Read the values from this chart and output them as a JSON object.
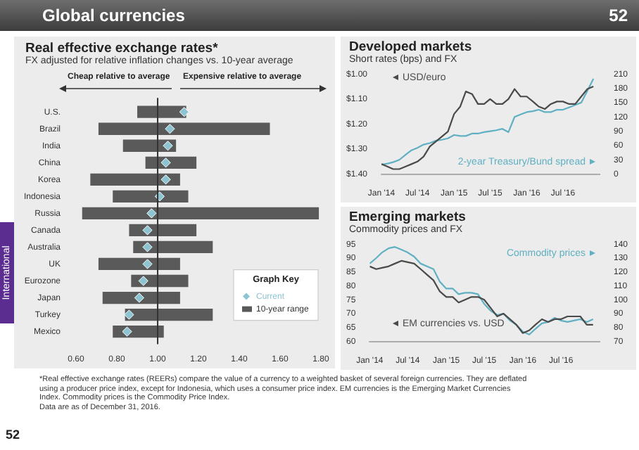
{
  "chart_data": [
    {
      "type": "other",
      "title": "Global currencies",
      "annotations": [
        "52",
        "International",
        "*Real effective exchange rates (REERs) compare the value of a currency to a weighted basket of several foreign currencies. They are deflated using a producer price index, except for Indonesia, which uses a consumer price index. EM currencies is the Emerging Market Currencies Index. Commodity prices is the Commodity Price Index.",
        "Data are as of December 31, 2016.",
        "52"
      ]
    },
    {
      "type": "bar",
      "orientation": "horizontal",
      "title": "Real effective exchange rates*",
      "subtitle": "FX adjusted for relative inflation changes vs. 10-year average",
      "annotations": [
        "Cheap relative to average",
        "Expensive relative to average"
      ],
      "categories": [
        "U.S.",
        "Brazil",
        "India",
        "China",
        "Korea",
        "Indonesia",
        "Russia",
        "Canada",
        "Australia",
        "UK",
        "Eurozone",
        "Japan",
        "Turkey",
        "Mexico"
      ],
      "series": [
        {
          "name": "10-year range",
          "type": "bar",
          "color": "#5a5a5a",
          "base": [
            0.9,
            0.71,
            0.83,
            0.94,
            0.67,
            0.78,
            0.63,
            0.86,
            0.88,
            0.71,
            0.87,
            0.73,
            0.84,
            0.78
          ],
          "values": [
            0.24,
            0.84,
            0.26,
            0.25,
            0.44,
            0.37,
            1.16,
            0.33,
            0.39,
            0.4,
            0.28,
            0.38,
            0.43,
            0.25
          ]
        },
        {
          "name": "Current",
          "type": "scatter",
          "color": "#8cc4d2",
          "values": [
            1.13,
            1.06,
            1.05,
            1.04,
            1.04,
            1.01,
            0.97,
            0.95,
            0.95,
            0.95,
            0.93,
            0.91,
            0.86,
            0.85
          ]
        }
      ],
      "marker": "diamond",
      "legend": "bottom right",
      "legend_title": "Graph Key",
      "xlim": [
        0.6,
        1.8
      ],
      "xticks": [
        {
          "value": 0.6,
          "label": "0.60"
        },
        {
          "value": 0.8,
          "label": "0.80"
        },
        {
          "value": 1.0,
          "label": "1.00"
        },
        {
          "value": 1.2,
          "label": "1.20"
        },
        {
          "value": 1.4,
          "label": "1.40"
        },
        {
          "value": 1.6,
          "label": "1.60"
        },
        {
          "value": 1.8,
          "label": "1.80"
        }
      ],
      "ref_lines": [
        {
          "axis": "x",
          "value": 1.0
        }
      ]
    },
    {
      "type": "line",
      "title": "Developed markets",
      "subtitle": "Short rates (bps) and FX",
      "x": [
        "2014-01",
        "2014-02",
        "2014-03",
        "2014-04",
        "2014-05",
        "2014-06",
        "2014-07",
        "2014-08",
        "2014-09",
        "2014-10",
        "2014-11",
        "2014-12",
        "2015-01",
        "2015-02",
        "2015-03",
        "2015-04",
        "2015-05",
        "2015-06",
        "2015-07",
        "2015-08",
        "2015-09",
        "2015-10",
        "2015-11",
        "2015-12",
        "2016-01",
        "2016-02",
        "2016-03",
        "2016-04",
        "2016-05",
        "2016-06",
        "2016-07",
        "2016-08",
        "2016-09",
        "2016-10",
        "2016-11",
        "2016-12"
      ],
      "series": [
        {
          "name": "USD/euro",
          "color": "#4a4a4a",
          "values": [
            1.36,
            1.37,
            1.38,
            1.38,
            1.37,
            1.36,
            1.35,
            1.33,
            1.29,
            1.27,
            1.25,
            1.23,
            1.16,
            1.13,
            1.07,
            1.08,
            1.12,
            1.12,
            1.1,
            1.12,
            1.12,
            1.1,
            1.06,
            1.09,
            1.09,
            1.11,
            1.13,
            1.14,
            1.12,
            1.11,
            1.11,
            1.12,
            1.12,
            1.09,
            1.06,
            1.05
          ]
        },
        {
          "name": "2-year Treasury/Bund spread",
          "color": "#5fb0c2",
          "axis": "y2",
          "values": [
            20,
            22,
            25,
            30,
            40,
            50,
            55,
            62,
            65,
            70,
            72,
            75,
            82,
            80,
            80,
            85,
            85,
            88,
            90,
            92,
            95,
            88,
            120,
            125,
            130,
            132,
            135,
            130,
            130,
            135,
            135,
            140,
            145,
            150,
            175,
            200
          ]
        }
      ],
      "xlim": [
        "2014-01",
        "2017-01"
      ],
      "xticks": [
        {
          "value": "2014-01",
          "label": "Jan '14"
        },
        {
          "value": "2014-07",
          "label": "Jul '14"
        },
        {
          "value": "2015-01",
          "label": "Jan '15"
        },
        {
          "value": "2015-07",
          "label": "Jul '15"
        },
        {
          "value": "2016-01",
          "label": "Jan '16"
        },
        {
          "value": "2016-07",
          "label": "Jul '16"
        }
      ],
      "ylim": [
        1.4,
        1.0
      ],
      "yticks": [
        {
          "value": 1.0,
          "label": "$1.00"
        },
        {
          "value": 1.1,
          "label": "$1.10"
        },
        {
          "value": 1.2,
          "label": "$1.20"
        },
        {
          "value": 1.3,
          "label": "$1.30"
        },
        {
          "value": 1.4,
          "label": "$1.40"
        }
      ],
      "y2lim": [
        0,
        210
      ],
      "y2ticks": [
        0,
        30,
        60,
        90,
        120,
        150,
        180,
        210
      ]
    },
    {
      "type": "line",
      "title": "Emerging markets",
      "subtitle": "Commodity prices and FX",
      "x": [
        "2014-01",
        "2014-02",
        "2014-03",
        "2014-04",
        "2014-05",
        "2014-06",
        "2014-07",
        "2014-08",
        "2014-09",
        "2014-10",
        "2014-11",
        "2014-12",
        "2015-01",
        "2015-02",
        "2015-03",
        "2015-04",
        "2015-05",
        "2015-06",
        "2015-07",
        "2015-08",
        "2015-09",
        "2015-10",
        "2015-11",
        "2015-12",
        "2016-01",
        "2016-02",
        "2016-03",
        "2016-04",
        "2016-05",
        "2016-06",
        "2016-07",
        "2016-08",
        "2016-09",
        "2016-10",
        "2016-11",
        "2016-12"
      ],
      "series": [
        {
          "name": "EM currencies vs. USD",
          "color": "#4a4a4a",
          "values": [
            87,
            86,
            86.5,
            87,
            88,
            89,
            88.5,
            88,
            86,
            84,
            82,
            78,
            76,
            76,
            74,
            75,
            76,
            76,
            75,
            72,
            69,
            70,
            68,
            66,
            63,
            64,
            66,
            68,
            67,
            68,
            68,
            69,
            69,
            69,
            66,
            66
          ]
        },
        {
          "name": "Commodity prices",
          "color": "#5fb0c2",
          "axis": "y2",
          "values": [
            126,
            130,
            134,
            137,
            138,
            136,
            134,
            131,
            126,
            124,
            122,
            113,
            108,
            108,
            104,
            105,
            105,
            104,
            97,
            92,
            89,
            90,
            85,
            82,
            77,
            75,
            79,
            83,
            84,
            87,
            85,
            84,
            85,
            86,
            84,
            86
          ]
        }
      ],
      "xlim": [
        "2014-01",
        "2017-01"
      ],
      "xticks": [
        {
          "value": "2014-01",
          "label": "Jan '14"
        },
        {
          "value": "2014-07",
          "label": "Jul '14"
        },
        {
          "value": "2015-01",
          "label": "Jan '15"
        },
        {
          "value": "2015-07",
          "label": "Jul '15"
        },
        {
          "value": "2016-01",
          "label": "Jan '16"
        },
        {
          "value": "2016-07",
          "label": "Jul '16"
        }
      ],
      "ylim": [
        60,
        95
      ],
      "yticks": [
        60,
        65,
        70,
        75,
        80,
        85,
        90,
        95
      ],
      "y2lim": [
        70,
        140
      ],
      "y2ticks": [
        70,
        80,
        90,
        100,
        110,
        120,
        130,
        140
      ]
    }
  ]
}
